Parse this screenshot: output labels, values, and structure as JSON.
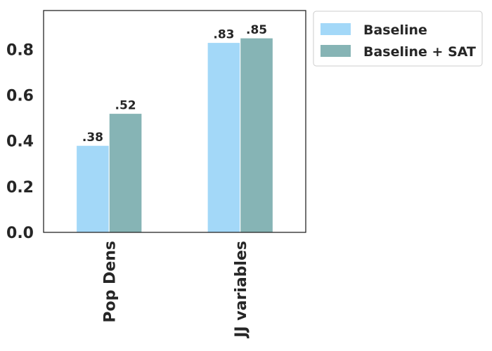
{
  "chart_data": {
    "type": "bar",
    "categories": [
      "Pop Dens",
      "JJ variables"
    ],
    "series": [
      {
        "name": "Baseline",
        "values": [
          0.38,
          0.83
        ],
        "labels": [
          ".38",
          ".83"
        ],
        "color": "#a3d8f8"
      },
      {
        "name": "Baseline + SAT",
        "values": [
          0.52,
          0.85
        ],
        "labels": [
          ".52",
          ".85"
        ],
        "color": "#86b4b5"
      }
    ],
    "ylim": [
      0,
      0.97
    ],
    "yticks": [
      0.0,
      0.2,
      0.4,
      0.6,
      0.8
    ],
    "ytick_labels": [
      "0.0",
      "0.2",
      "0.4",
      "0.6",
      "0.8"
    ],
    "grid": false,
    "legend": "outside-top-right",
    "title": "",
    "xlabel": "",
    "ylabel": ""
  }
}
